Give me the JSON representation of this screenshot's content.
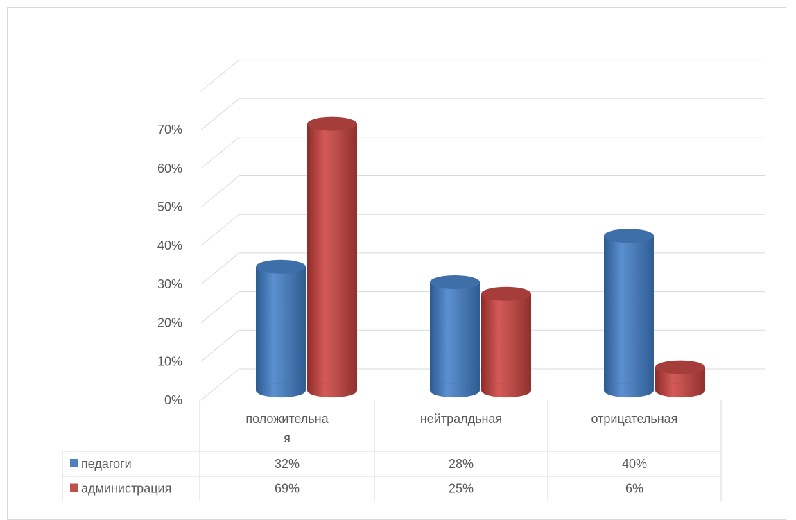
{
  "chart_data": {
    "type": "bar",
    "categories": [
      "положительная",
      "нейтралдьная",
      "отрицательная"
    ],
    "category_lines": [
      [
        "положительна",
        "я"
      ],
      [
        "нейтралдьная"
      ],
      [
        "отрицательная"
      ]
    ],
    "series": [
      {
        "name": "педагоги",
        "values": [
          32,
          28,
          40
        ],
        "labels": [
          "32%",
          "28%",
          "40%"
        ],
        "color": "#4f81bd"
      },
      {
        "name": "администрация",
        "values": [
          69,
          25,
          6
        ],
        "labels": [
          "69%",
          "25%",
          "6%"
        ],
        "color": "#c0504d"
      }
    ],
    "y_ticks": [
      "0%",
      "10%",
      "20%",
      "30%",
      "40%",
      "50%",
      "60%",
      "70%"
    ],
    "ylim": [
      0,
      70
    ],
    "grid": true,
    "legend": "data-table",
    "style": "3d-cylinder"
  }
}
